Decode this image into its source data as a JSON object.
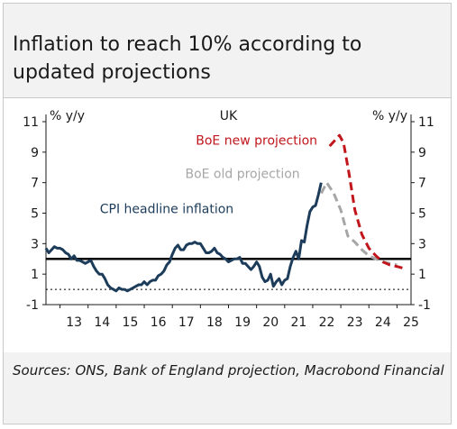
{
  "title": "Inflation to reach 10% according to updated projections",
  "source": "Sources: ONS, Bank of England projection, Macrobond Financial",
  "chart_data": {
    "type": "line",
    "title": "UK",
    "ylabel_left": "% y/y",
    "ylabel_right": "% y/y",
    "ylim": [
      -1,
      11
    ],
    "yticks": [
      "-1",
      "1",
      "3",
      "5",
      "7",
      "9",
      "11"
    ],
    "xlim": [
      2012.5,
      2025.5
    ],
    "xticks": [
      "13",
      "14",
      "15",
      "16",
      "17",
      "18",
      "19",
      "20",
      "21",
      "22",
      "23",
      "24",
      "25"
    ],
    "reference_lines": [
      {
        "y": 2,
        "style": "solid"
      },
      {
        "y": 0,
        "style": "dotted"
      }
    ],
    "grid": false,
    "series": [
      {
        "name": "CPI headline inflation",
        "color": "#1c3c5a",
        "style": "solid",
        "points": [
          [
            2012.5,
            2.7
          ],
          [
            2012.6,
            2.4
          ],
          [
            2012.7,
            2.6
          ],
          [
            2012.8,
            2.8
          ],
          [
            2012.9,
            2.7
          ],
          [
            2013.0,
            2.7
          ],
          [
            2013.1,
            2.6
          ],
          [
            2013.2,
            2.4
          ],
          [
            2013.3,
            2.3
          ],
          [
            2013.4,
            2.0
          ],
          [
            2013.5,
            2.2
          ],
          [
            2013.6,
            1.9
          ],
          [
            2013.7,
            1.9
          ],
          [
            2013.8,
            1.8
          ],
          [
            2013.9,
            1.7
          ],
          [
            2014.0,
            1.8
          ],
          [
            2014.1,
            1.9
          ],
          [
            2014.2,
            1.5
          ],
          [
            2014.3,
            1.2
          ],
          [
            2014.4,
            1.0
          ],
          [
            2014.5,
            1.0
          ],
          [
            2014.6,
            0.7
          ],
          [
            2014.7,
            0.3
          ],
          [
            2014.8,
            0.1
          ],
          [
            2014.9,
            0.0
          ],
          [
            2015.0,
            -0.1
          ],
          [
            2015.1,
            0.1
          ],
          [
            2015.2,
            0.0
          ],
          [
            2015.3,
            0.0
          ],
          [
            2015.4,
            -0.1
          ],
          [
            2015.5,
            0.0
          ],
          [
            2015.6,
            0.1
          ],
          [
            2015.7,
            0.2
          ],
          [
            2015.8,
            0.3
          ],
          [
            2015.9,
            0.3
          ],
          [
            2016.0,
            0.5
          ],
          [
            2016.1,
            0.3
          ],
          [
            2016.2,
            0.5
          ],
          [
            2016.3,
            0.6
          ],
          [
            2016.4,
            0.6
          ],
          [
            2016.5,
            0.9
          ],
          [
            2016.6,
            1.0
          ],
          [
            2016.7,
            1.2
          ],
          [
            2016.8,
            1.6
          ],
          [
            2016.9,
            1.8
          ],
          [
            2017.0,
            2.3
          ],
          [
            2017.1,
            2.7
          ],
          [
            2017.2,
            2.9
          ],
          [
            2017.3,
            2.6
          ],
          [
            2017.4,
            2.6
          ],
          [
            2017.5,
            2.9
          ],
          [
            2017.6,
            3.0
          ],
          [
            2017.7,
            3.0
          ],
          [
            2017.8,
            3.1
          ],
          [
            2017.9,
            3.0
          ],
          [
            2018.0,
            3.0
          ],
          [
            2018.1,
            2.7
          ],
          [
            2018.2,
            2.4
          ],
          [
            2018.3,
            2.4
          ],
          [
            2018.4,
            2.5
          ],
          [
            2018.5,
            2.7
          ],
          [
            2018.6,
            2.4
          ],
          [
            2018.7,
            2.3
          ],
          [
            2018.8,
            2.1
          ],
          [
            2018.9,
            2.0
          ],
          [
            2019.0,
            1.8
          ],
          [
            2019.1,
            1.9
          ],
          [
            2019.2,
            2.0
          ],
          [
            2019.3,
            2.0
          ],
          [
            2019.4,
            2.1
          ],
          [
            2019.5,
            1.7
          ],
          [
            2019.6,
            1.7
          ],
          [
            2019.7,
            1.5
          ],
          [
            2019.8,
            1.3
          ],
          [
            2019.9,
            1.5
          ],
          [
            2020.0,
            1.8
          ],
          [
            2020.1,
            1.5
          ],
          [
            2020.2,
            0.8
          ],
          [
            2020.3,
            0.5
          ],
          [
            2020.4,
            0.6
          ],
          [
            2020.5,
            1.0
          ],
          [
            2020.6,
            0.2
          ],
          [
            2020.7,
            0.5
          ],
          [
            2020.8,
            0.7
          ],
          [
            2020.9,
            0.3
          ],
          [
            2021.0,
            0.6
          ],
          [
            2021.1,
            0.7
          ],
          [
            2021.2,
            1.5
          ],
          [
            2021.3,
            2.1
          ],
          [
            2021.4,
            2.5
          ],
          [
            2021.5,
            2.0
          ],
          [
            2021.6,
            3.2
          ],
          [
            2021.7,
            3.1
          ],
          [
            2021.8,
            4.2
          ],
          [
            2021.9,
            5.1
          ],
          [
            2022.0,
            5.4
          ],
          [
            2022.1,
            5.5
          ],
          [
            2022.2,
            6.2
          ],
          [
            2022.3,
            7.0
          ]
        ]
      },
      {
        "name": "BoE old projection",
        "color": "#a6a6a6",
        "style": "dashed",
        "points": [
          [
            2022.3,
            6.3
          ],
          [
            2022.5,
            7.0
          ],
          [
            2022.75,
            6.3
          ],
          [
            2023.0,
            5.2
          ],
          [
            2023.25,
            3.5
          ],
          [
            2023.5,
            3.1
          ],
          [
            2023.75,
            2.6
          ],
          [
            2024.0,
            2.2
          ],
          [
            2024.25,
            2.0
          ],
          [
            2024.5,
            1.8
          ],
          [
            2024.75,
            1.7
          ],
          [
            2025.0,
            1.6
          ]
        ]
      },
      {
        "name": "BoE new projection",
        "color": "#c0161c",
        "style": "dashed",
        "points": [
          [
            2022.6,
            9.4
          ],
          [
            2022.8,
            9.8
          ],
          [
            2022.95,
            10.1
          ],
          [
            2023.1,
            9.6
          ],
          [
            2023.3,
            7.5
          ],
          [
            2023.5,
            5.2
          ],
          [
            2023.75,
            3.6
          ],
          [
            2024.0,
            2.7
          ],
          [
            2024.25,
            2.2
          ],
          [
            2024.5,
            1.8
          ],
          [
            2024.75,
            1.6
          ],
          [
            2025.0,
            1.5
          ],
          [
            2025.2,
            1.4
          ]
        ]
      }
    ]
  }
}
